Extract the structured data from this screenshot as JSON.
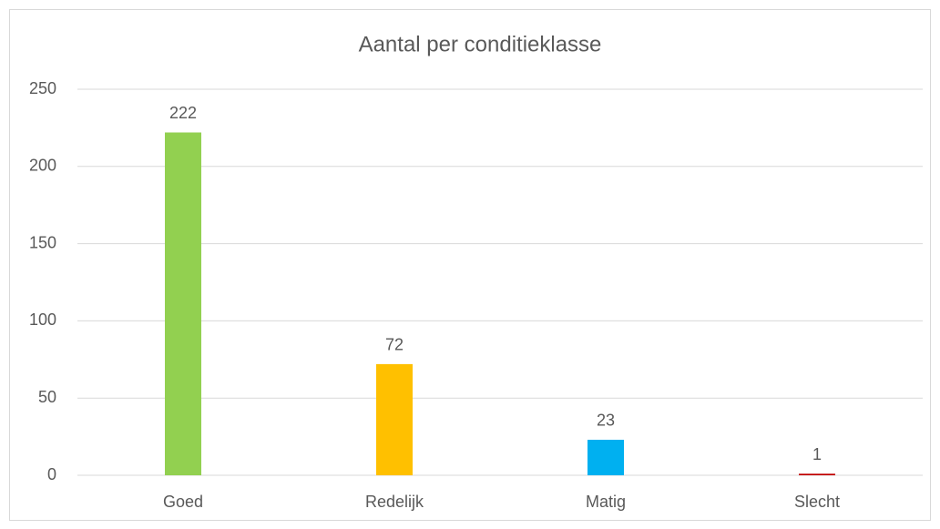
{
  "chart_data": {
    "type": "bar",
    "title": "Aantal per conditieklasse",
    "categories": [
      "Goed",
      "Redelijk",
      "Matig",
      "Slecht"
    ],
    "values": [
      222,
      72,
      23,
      1
    ],
    "colors": [
      "#92d050",
      "#ffc000",
      "#00b0f0",
      "#c00000"
    ],
    "ylim": [
      0,
      250
    ],
    "yticks": [
      0,
      50,
      100,
      150,
      200,
      250
    ],
    "grid": true
  }
}
